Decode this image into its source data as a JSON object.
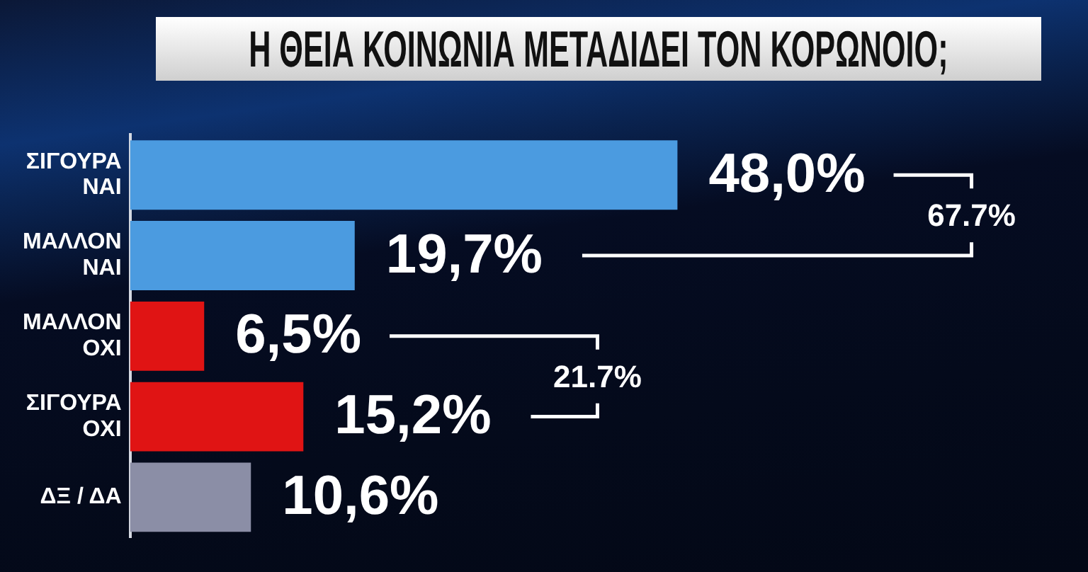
{
  "chart_data": {
    "type": "bar",
    "orientation": "horizontal",
    "title": "Η ΘΕΙΑ ΚΟΙΝΩΝΙΑ ΜΕΤΑΔΙΔΕΙ ΤΟΝ ΚΟΡΩΝΟΙΟ;",
    "categories": [
      "ΣΙΓΟΥΡΑ ΝΑΙ",
      "ΜΑΛΛΟΝ ΝΑΙ",
      "ΜΑΛΛΟΝ ΟΧΙ",
      "ΣΙΓΟΥΡΑ ΟΧΙ",
      "ΔΞ / ΔΑ"
    ],
    "values": [
      48.0,
      19.7,
      6.5,
      15.2,
      10.6
    ],
    "value_labels": [
      "48,0%",
      "19,7%",
      "6,5%",
      "15,2%",
      "10,6%"
    ],
    "colors": [
      "#4b9be0",
      "#4b9be0",
      "#e01414",
      "#e01414",
      "#8b8ea6"
    ],
    "xlim": [
      0,
      84
    ],
    "tick_labels": "y",
    "annotations": [
      "67.7%",
      "21.7%"
    ]
  }
}
